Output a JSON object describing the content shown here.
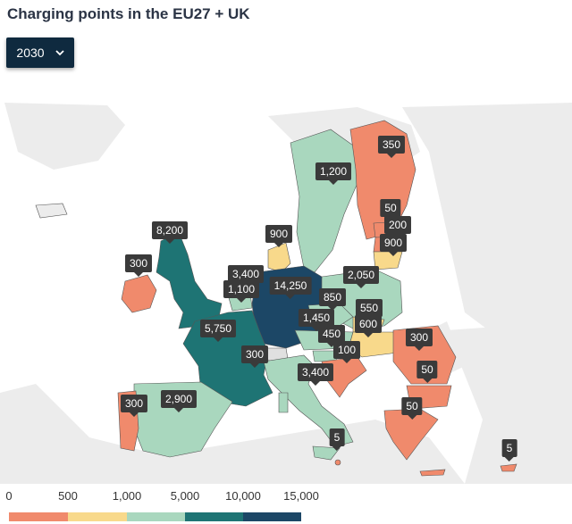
{
  "title": "Charging points in the EU27 + UK",
  "selector": {
    "value": "2030",
    "icon": "chevron-down-icon"
  },
  "labels": {
    "uk": "8,200",
    "ireland": "300",
    "netherlands": "3,400",
    "belgium": "1,100",
    "germany": "14,250",
    "denmark": "900",
    "sweden": "1,200",
    "finland": "350",
    "estonia": "50",
    "latvia": "200",
    "lithuania": "900",
    "poland": "2,050",
    "czechia": "850",
    "slovakia": "550",
    "hungary": "600",
    "austria": "1,450",
    "slovenia": "450",
    "croatia": "100",
    "france": "5,750",
    "switzerland": "300",
    "italy": "3,400",
    "spain": "2,900",
    "portugal": "300",
    "romania": "300",
    "bulgaria": "50",
    "greece": "50",
    "malta": "5",
    "cyprus": "5"
  },
  "legend": {
    "ticks": [
      "0",
      "500",
      "1,000",
      "5,000",
      "10,000",
      "15,000"
    ],
    "colors": [
      "#f08a6c",
      "#f8d98b",
      "#a9d7be",
      "#1e7474",
      "#1c4766"
    ]
  },
  "colors": {
    "land_other": "#ececec",
    "water": "#ffffff",
    "bin_0_500": "#f08a6c",
    "bin_500_1000": "#f8d98b",
    "bin_1000_5000": "#a9d7be",
    "bin_5000_10000": "#1e7474",
    "bin_10000_15000": "#1c4766"
  }
}
